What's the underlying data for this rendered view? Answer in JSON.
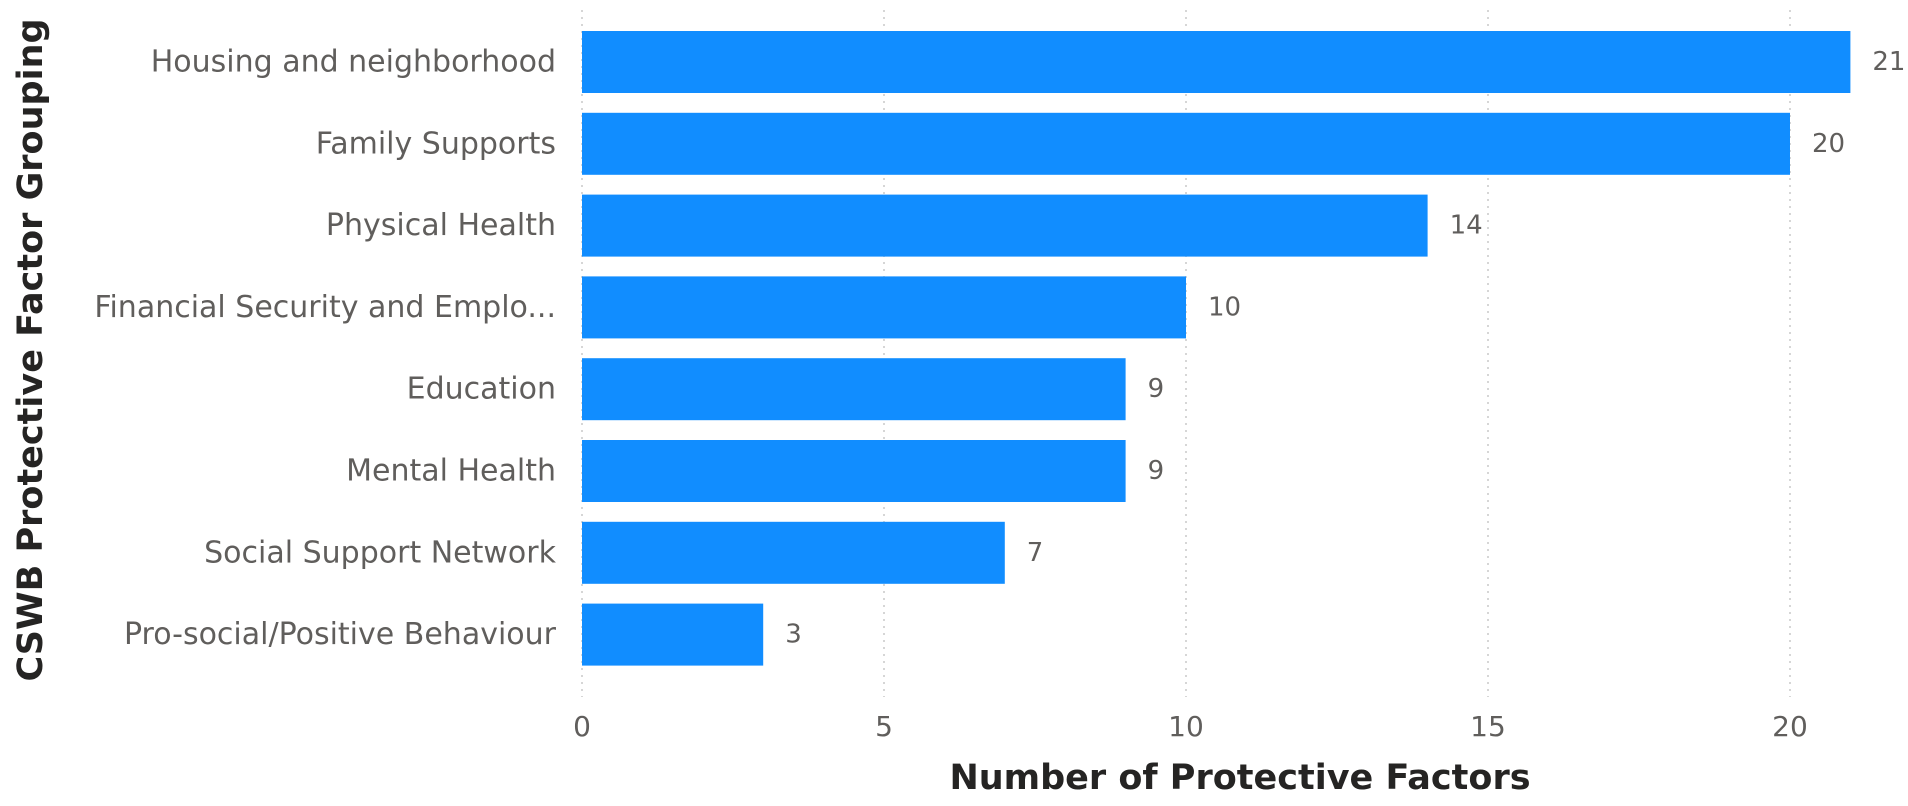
{
  "chart_data": {
    "type": "bar",
    "orientation": "horizontal",
    "categories": [
      "Housing and neighborhood",
      "Family Supports",
      "Physical Health",
      "Financial Security and Emplo...",
      "Education",
      "Mental Health",
      "Social Support Network",
      "Pro-social/Positive Behaviour"
    ],
    "values": [
      21,
      20,
      14,
      10,
      9,
      9,
      7,
      3
    ],
    "xlabel": "Number of Protective Factors",
    "ylabel": "CSWB Protective Factor Grouping",
    "xlim": [
      0,
      21
    ],
    "xticks": [
      0,
      5,
      10,
      15,
      20
    ],
    "grid": "vertical dotted",
    "data_labels": true,
    "bar_color": "#118dff"
  }
}
